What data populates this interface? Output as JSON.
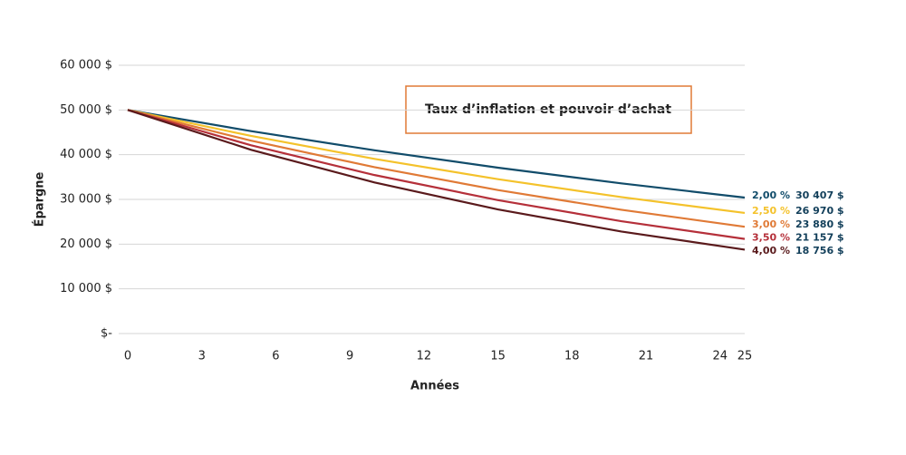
{
  "chart_data": {
    "type": "line",
    "title": "Taux d’inflation et pouvoir d’achat",
    "x_label": "Années",
    "y_label": "Épargne",
    "x": [
      0,
      5,
      10,
      15,
      20,
      25
    ],
    "series": [
      {
        "name": "2,00 %",
        "color": "#114c6a",
        "values": [
          50000,
          45265,
          40978,
          37097,
          33584,
          30407
        ],
        "value_labels": [
          null,
          null,
          null,
          null,
          null,
          "30 407 $"
        ]
      },
      {
        "name": "2,50 %",
        "color": "#f4c22b",
        "values": [
          50000,
          44193,
          39061,
          34525,
          30515,
          26970
        ],
        "value_labels": [
          null,
          null,
          null,
          null,
          null,
          "26 970 $"
        ]
      },
      {
        "name": "3,00 %",
        "color": "#e07a36",
        "values": [
          50000,
          43130,
          37204,
          32092,
          27682,
          23880
        ],
        "value_labels": [
          null,
          null,
          null,
          null,
          null,
          "23 880 $"
        ]
      },
      {
        "name": "3,50 %",
        "color": "#b5303a",
        "values": [
          50000,
          42098,
          35445,
          29843,
          25127,
          21157
        ],
        "value_labels": [
          null,
          null,
          null,
          null,
          null,
          "21 157 $"
        ]
      },
      {
        "name": "4,00 %",
        "color": "#5a1a1c",
        "values": [
          50000,
          41096,
          33778,
          27763,
          22819,
          18756
        ],
        "value_labels": [
          null,
          null,
          null,
          null,
          null,
          "18 756 $"
        ]
      }
    ],
    "xlim": [
      0,
      25
    ],
    "xticks": [
      0,
      3,
      6,
      9,
      12,
      15,
      18,
      21,
      24,
      25
    ],
    "ylim": [
      0,
      60000
    ],
    "yticks": [
      {
        "value": 0,
        "label": "$-"
      },
      {
        "value": 10000,
        "label": "10 000 $"
      },
      {
        "value": 20000,
        "label": "20 000 $"
      },
      {
        "value": 30000,
        "label": "30 000 $"
      },
      {
        "value": 40000,
        "label": "40 000 $"
      },
      {
        "value": 50000,
        "label": "50 000 $"
      },
      {
        "value": 60000,
        "label": "60 000 $"
      }
    ],
    "grid": true
  }
}
